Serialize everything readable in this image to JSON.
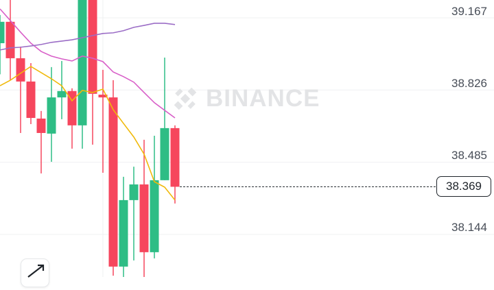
{
  "chart_data": {
    "type": "candlestick",
    "title": "",
    "ylim": [
      37.943,
      39.251
    ],
    "y_ticks": [
      "39.167",
      "38.826",
      "38.485",
      "38.144"
    ],
    "grid": true,
    "last_price": "38.369",
    "colors": {
      "up": "#2ebd85",
      "down": "#f6465d",
      "ma_short": "#f0b90b",
      "ma_mid": "#d85fc8",
      "ma_long": "#9b6dc6"
    },
    "candles": [
      {
        "o": 39.047,
        "h": 39.18,
        "l": 38.9,
        "c": 39.148
      },
      {
        "o": 39.148,
        "h": 39.26,
        "l": 38.872,
        "c": 38.976
      },
      {
        "o": 38.976,
        "h": 39.031,
        "l": 38.623,
        "c": 38.866
      },
      {
        "o": 38.866,
        "h": 38.953,
        "l": 38.665,
        "c": 38.694
      },
      {
        "o": 38.691,
        "h": 38.727,
        "l": 38.432,
        "c": 38.623
      },
      {
        "o": 38.62,
        "h": 38.934,
        "l": 38.487,
        "c": 38.791
      },
      {
        "o": 38.791,
        "h": 38.963,
        "l": 38.688,
        "c": 38.821
      },
      {
        "o": 38.821,
        "h": 38.834,
        "l": 38.549,
        "c": 38.659
      },
      {
        "o": 38.659,
        "h": 39.283,
        "l": 38.549,
        "c": 39.283
      },
      {
        "o": 39.283,
        "h": 39.283,
        "l": 38.568,
        "c": 38.808
      },
      {
        "o": 38.804,
        "h": 38.921,
        "l": 38.435,
        "c": 38.791
      },
      {
        "o": 38.791,
        "h": 38.872,
        "l": 37.949,
        "c": 37.992
      },
      {
        "o": 37.992,
        "h": 38.416,
        "l": 37.943,
        "c": 38.306
      },
      {
        "o": 38.306,
        "h": 38.464,
        "l": 38.021,
        "c": 38.38
      },
      {
        "o": 38.38,
        "h": 38.591,
        "l": 37.943,
        "c": 38.06
      },
      {
        "o": 38.06,
        "h": 38.61,
        "l": 38.031,
        "c": 38.4
      },
      {
        "o": 38.4,
        "h": 38.979,
        "l": 38.4,
        "c": 38.646
      },
      {
        "o": 38.646,
        "h": 38.659,
        "l": 38.29,
        "c": 38.369
      }
    ],
    "moving_averages": [
      {
        "color": "#f0b90b",
        "values": [
          38.846,
          38.872,
          38.905,
          38.937,
          38.908,
          38.879,
          38.846,
          38.775,
          38.824,
          38.814,
          38.83,
          38.733,
          38.668,
          38.604,
          38.523,
          38.393,
          38.367,
          38.306
        ]
      },
      {
        "color": "#d85fc8",
        "values": [
          39.209,
          39.154,
          39.099,
          39.047,
          39.008,
          38.986,
          38.973,
          38.963,
          38.986,
          38.976,
          38.96,
          38.911,
          38.889,
          38.863,
          38.814,
          38.766,
          38.73,
          38.694
        ]
      },
      {
        "color": "#9b6dc6",
        "values": [
          39.015,
          39.025,
          39.028,
          39.034,
          39.041,
          39.051,
          39.057,
          39.063,
          39.073,
          39.083,
          39.093,
          39.096,
          39.106,
          39.122,
          39.131,
          39.141,
          39.141,
          39.135
        ]
      }
    ],
    "watermark": "BINANCE"
  },
  "icons": {
    "expand": "expand-arrows-icon",
    "logo": "binance-logo-icon"
  }
}
